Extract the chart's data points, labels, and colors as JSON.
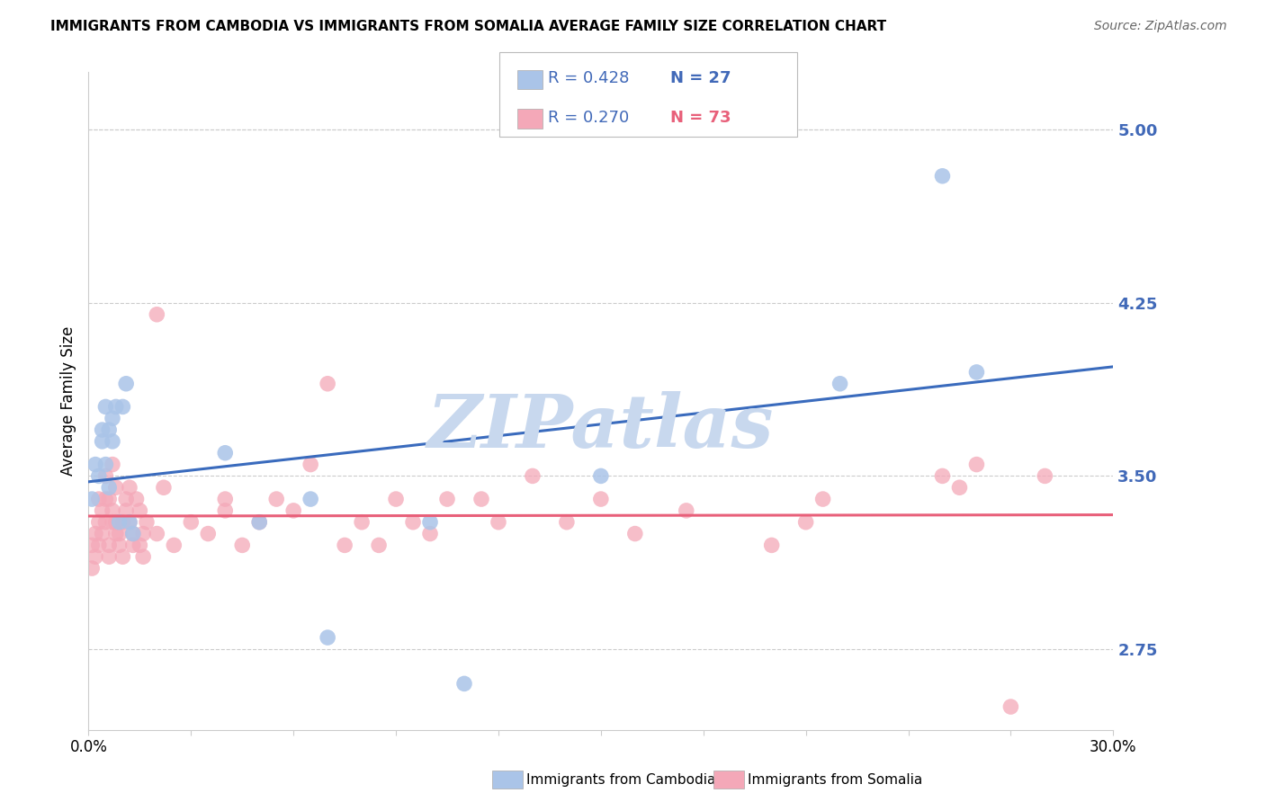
{
  "title": "IMMIGRANTS FROM CAMBODIA VS IMMIGRANTS FROM SOMALIA AVERAGE FAMILY SIZE CORRELATION CHART",
  "source": "Source: ZipAtlas.com",
  "ylabel": "Average Family Size",
  "right_yticks": [
    2.75,
    3.5,
    4.25,
    5.0
  ],
  "right_ytick_color": "#4169b8",
  "cambodia_color": "#aac4e8",
  "somalia_color": "#f4a8b8",
  "cambodia_line_color": "#3a6bbd",
  "somalia_line_color": "#e8607a",
  "r_color": "#4169b8",
  "n_color": "#4169b8",
  "watermark": "ZIPatlas",
  "watermark_color": "#c8d8ee",
  "ylim_low": 2.4,
  "ylim_high": 5.25,
  "cambodia_x": [
    0.001,
    0.002,
    0.003,
    0.004,
    0.004,
    0.005,
    0.005,
    0.006,
    0.006,
    0.007,
    0.007,
    0.008,
    0.009,
    0.01,
    0.011,
    0.012,
    0.013,
    0.04,
    0.05,
    0.065,
    0.07,
    0.1,
    0.11,
    0.15,
    0.22,
    0.25,
    0.26
  ],
  "cambodia_y": [
    3.4,
    3.55,
    3.5,
    3.7,
    3.65,
    3.8,
    3.55,
    3.45,
    3.7,
    3.65,
    3.75,
    3.8,
    3.3,
    3.8,
    3.9,
    3.3,
    3.25,
    3.6,
    3.3,
    3.4,
    2.8,
    3.3,
    2.6,
    3.5,
    3.9,
    4.8,
    3.95
  ],
  "somalia_x": [
    0.001,
    0.001,
    0.002,
    0.002,
    0.003,
    0.003,
    0.003,
    0.004,
    0.004,
    0.005,
    0.005,
    0.005,
    0.006,
    0.006,
    0.006,
    0.007,
    0.007,
    0.007,
    0.008,
    0.008,
    0.008,
    0.009,
    0.009,
    0.01,
    0.01,
    0.011,
    0.011,
    0.012,
    0.012,
    0.013,
    0.013,
    0.014,
    0.015,
    0.015,
    0.016,
    0.016,
    0.017,
    0.02,
    0.02,
    0.022,
    0.025,
    0.03,
    0.035,
    0.04,
    0.04,
    0.045,
    0.05,
    0.055,
    0.06,
    0.065,
    0.07,
    0.075,
    0.08,
    0.085,
    0.09,
    0.095,
    0.1,
    0.105,
    0.115,
    0.12,
    0.13,
    0.14,
    0.15,
    0.16,
    0.175,
    0.2,
    0.21,
    0.215,
    0.25,
    0.255,
    0.26,
    0.27,
    0.28
  ],
  "somalia_y": [
    3.2,
    3.1,
    3.25,
    3.15,
    3.3,
    3.4,
    3.2,
    3.35,
    3.25,
    3.4,
    3.5,
    3.3,
    3.2,
    3.15,
    3.4,
    3.55,
    3.35,
    3.3,
    3.25,
    3.45,
    3.3,
    3.2,
    3.25,
    3.15,
    3.3,
    3.4,
    3.35,
    3.45,
    3.3,
    3.2,
    3.25,
    3.4,
    3.2,
    3.35,
    3.25,
    3.15,
    3.3,
    3.25,
    4.2,
    3.45,
    3.2,
    3.3,
    3.25,
    3.4,
    3.35,
    3.2,
    3.3,
    3.4,
    3.35,
    3.55,
    3.9,
    3.2,
    3.3,
    3.2,
    3.4,
    3.3,
    3.25,
    3.4,
    3.4,
    3.3,
    3.5,
    3.3,
    3.4,
    3.25,
    3.35,
    3.2,
    3.3,
    3.4,
    3.5,
    3.45,
    3.55,
    2.5,
    3.5
  ],
  "legend_r_cambodia": "R = 0.428",
  "legend_n_cambodia": "N = 27",
  "legend_r_somalia": "R = 0.270",
  "legend_n_somalia": "N = 73",
  "bottom_legend_cambodia": "Immigrants from Cambodia",
  "bottom_legend_somalia": "Immigrants from Somalia"
}
